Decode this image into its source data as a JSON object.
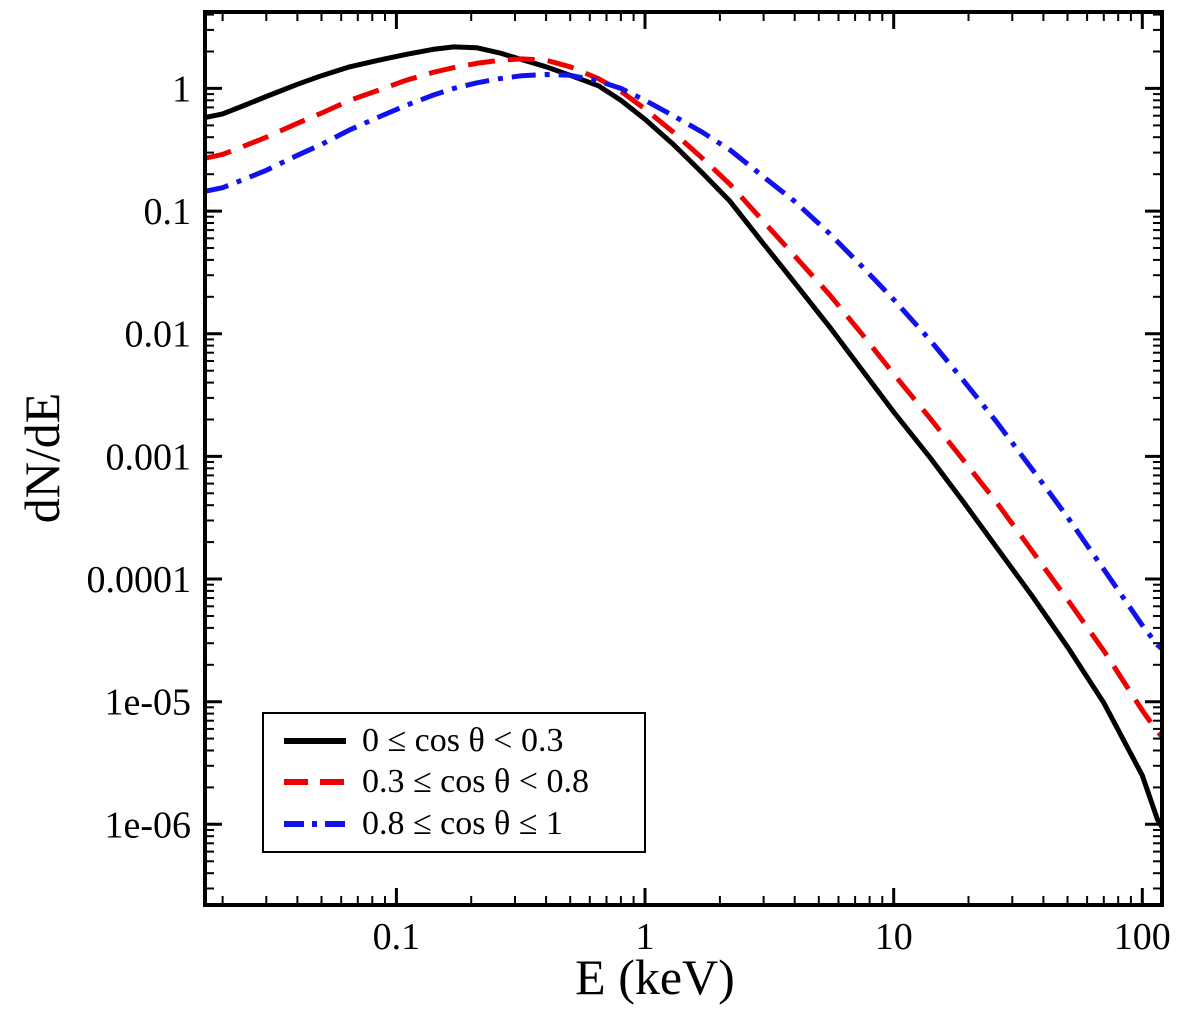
{
  "figure": {
    "background": "#ffffff",
    "axis_color": "#000000"
  },
  "chart_data": {
    "type": "line",
    "title": "",
    "xlabel": "E (keV)",
    "ylabel": "dN/dE",
    "x_scale": "log",
    "y_scale": "log",
    "xlim": [
      0.017,
      120
    ],
    "ylim": [
      2.2e-07,
      4.2
    ],
    "grid": false,
    "legend_position": "lower-left",
    "axis_color": "#000000",
    "x_major_ticks": [
      0.1,
      1,
      10,
      100
    ],
    "x_major_tick_labels": [
      "0.1",
      "1",
      "10",
      "100"
    ],
    "y_major_ticks": [
      1,
      0.1,
      0.01,
      0.001,
      0.0001,
      1e-05,
      1e-06
    ],
    "y_major_tick_labels": [
      "1",
      "0.1",
      "0.01",
      "0.001",
      "0.0001",
      "1e-05",
      "1e-06"
    ],
    "x": [
      0.017,
      0.02,
      0.025,
      0.03,
      0.04,
      0.05,
      0.065,
      0.085,
      0.11,
      0.14,
      0.17,
      0.21,
      0.26,
      0.32,
      0.4,
      0.5,
      0.65,
      0.8,
      1.0,
      1.3,
      1.7,
      2.2,
      3.0,
      4.0,
      5.5,
      7.5,
      10,
      14,
      19,
      26,
      36,
      50,
      70,
      100,
      115,
      120
    ],
    "series": [
      {
        "name": "0 ≤ cos θ < 0.3",
        "color": "#000000",
        "style": "solid",
        "values": [
          0.58,
          0.62,
          0.74,
          0.86,
          1.08,
          1.27,
          1.5,
          1.7,
          1.9,
          2.08,
          2.18,
          2.15,
          1.95,
          1.72,
          1.5,
          1.28,
          1.05,
          0.8,
          0.56,
          0.35,
          0.205,
          0.12,
          0.054,
          0.026,
          0.0115,
          0.005,
          0.0023,
          0.00098,
          0.00043,
          0.00018,
          7.3e-05,
          2.8e-05,
          9.8e-06,
          2.5e-06,
          1.1e-06,
          9.5e-07
        ]
      },
      {
        "name": "0.3 ≤ cos θ < 0.8",
        "color": "#ee0000",
        "style": "dashed",
        "values": [
          0.27,
          0.29,
          0.345,
          0.4,
          0.52,
          0.63,
          0.8,
          0.97,
          1.17,
          1.35,
          1.48,
          1.6,
          1.7,
          1.74,
          1.7,
          1.5,
          1.2,
          0.95,
          0.68,
          0.44,
          0.27,
          0.165,
          0.082,
          0.043,
          0.021,
          0.0098,
          0.0047,
          0.00205,
          0.00094,
          0.00042,
          0.00017,
          6.8e-05,
          2.6e-05,
          8.5e-06,
          5.7e-06,
          5.2e-06
        ]
      },
      {
        "name": "0.8 ≤ cos θ ≤ 1",
        "color": "#1111ee",
        "style": "dashdot",
        "values": [
          0.145,
          0.155,
          0.185,
          0.215,
          0.285,
          0.35,
          0.46,
          0.585,
          0.73,
          0.88,
          1.0,
          1.11,
          1.2,
          1.27,
          1.3,
          1.28,
          1.15,
          1.0,
          0.8,
          0.6,
          0.44,
          0.315,
          0.19,
          0.12,
          0.066,
          0.035,
          0.019,
          0.0089,
          0.0042,
          0.0019,
          0.00079,
          0.00032,
          0.00012,
          4.2e-05,
          2.9e-05,
          2.7e-05
        ]
      }
    ]
  }
}
